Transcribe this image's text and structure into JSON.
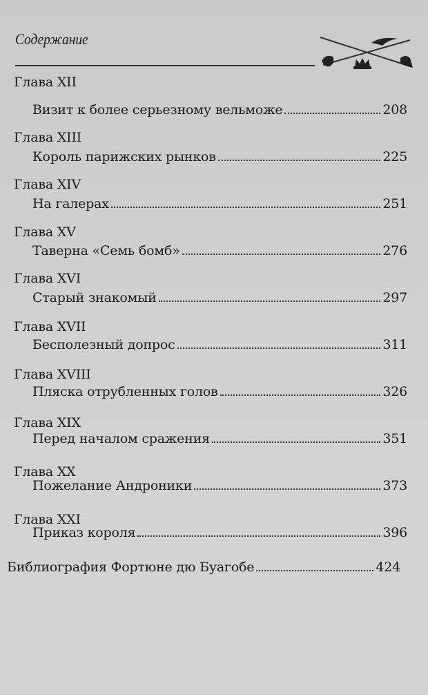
{
  "header": {
    "title": "Содержание",
    "emblem": "crossed-swords-crown-bird-emblem"
  },
  "chapters": [
    {
      "label": "Глава XII",
      "title": "Визит к более серьезному вельможе",
      "page": "208"
    },
    {
      "label": "Глава XIII",
      "title": "Король парижских рынков",
      "page": "225"
    },
    {
      "label": "Глава XIV",
      "title": "На галерах",
      "page": "251"
    },
    {
      "label": "Глава XV",
      "title": "Таверна «Семь бомб»",
      "page": "276"
    },
    {
      "label": "Глава XVI",
      "title": "Старый знакомый",
      "page": "297"
    },
    {
      "label": "Глава XVII",
      "title": "Бесполезный допрос",
      "page": "311"
    },
    {
      "label": "Глава XVIII",
      "title": "Пляска отрубленных голов",
      "page": "326"
    },
    {
      "label": "Глава XIX",
      "title": "Перед началом сражения",
      "page": "351"
    },
    {
      "label": "Глава XX",
      "title": "Пожелание Андроники",
      "page": "373"
    },
    {
      "label": "Глава XXI",
      "title": "Приказ короля",
      "page": "396"
    }
  ],
  "bibliography": {
    "title": "Библиография Фортюне дю Буагобе",
    "page": "424"
  }
}
